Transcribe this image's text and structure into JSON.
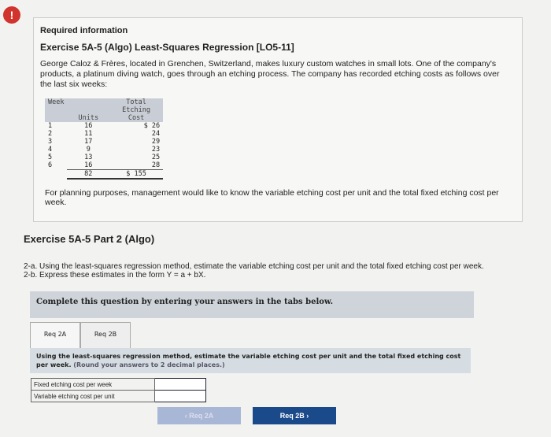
{
  "alert_icon": "!",
  "info": {
    "heading": "Required information",
    "exercise_title": "Exercise 5A-5 (Algo) Least-Squares Regression [LO5-11]",
    "description": "George Caloz & Frères, located in Grenchen, Switzerland, makes luxury custom watches in small lots. One of the company's products, a platinum diving watch, goes through an etching process. The company has recorded etching costs as follows over the last six weeks:",
    "table": {
      "headers": [
        "Week",
        "Units",
        "Total Etching Cost"
      ],
      "rows": [
        [
          "1",
          "16",
          "$ 26"
        ],
        [
          "2",
          "11",
          "24"
        ],
        [
          "3",
          "17",
          "29"
        ],
        [
          "4",
          "9",
          "23"
        ],
        [
          "5",
          "13",
          "25"
        ],
        [
          "6",
          "16",
          "28"
        ]
      ],
      "totals": [
        "",
        "82",
        "$ 155"
      ]
    },
    "planning": "For planning purposes, management would like to know the variable etching cost per unit and the total fixed etching cost per week."
  },
  "part": {
    "title": "Exercise 5A-5 Part 2 (Algo)",
    "q1": "2-a. Using the least-squares regression method, estimate the variable etching cost per unit and the total fixed etching cost per week.",
    "q2": "2-b. Express these estimates in the form Y = a + bX."
  },
  "complete": "Complete this question by entering your answers in the tabs below.",
  "tabs": [
    "Req 2A",
    "Req 2B"
  ],
  "instruction": "Using the least-squares regression method, estimate the variable etching cost per unit and the total fixed etching cost per week.",
  "instruction_note": "(Round your answers to 2 decimal places.)",
  "answers": [
    {
      "label": "Fixed etching cost per week",
      "value": ""
    },
    {
      "label": "Variable etching cost per unit",
      "value": ""
    }
  ],
  "nav": {
    "prev": "‹ Req 2A",
    "next": "Req 2B ›"
  }
}
